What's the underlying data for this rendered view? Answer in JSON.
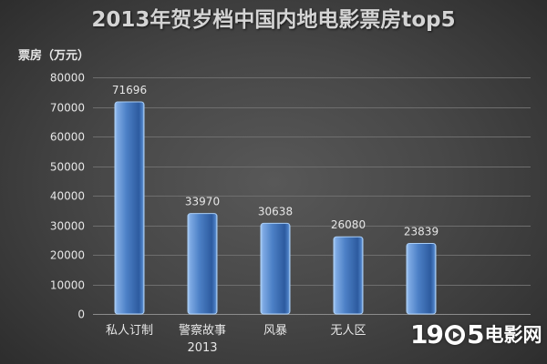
{
  "chart_data": {
    "type": "bar",
    "title": "2013年贺岁档中国内地电影票房top5",
    "ylabel": "票房（万元）",
    "xlabel": "",
    "categories": [
      "私人订制",
      "警察故事\n2013",
      "风暴",
      "无人区",
      ""
    ],
    "values": [
      71696,
      33970,
      30638,
      26080,
      23839
    ],
    "ylim": [
      0,
      80000
    ],
    "yticks": [
      0,
      10000,
      20000,
      30000,
      40000,
      50000,
      60000,
      70000,
      80000
    ],
    "data_labels": true,
    "grid": true,
    "legend": "none"
  },
  "colors": {
    "title": "#d4d4d4",
    "text": "#e6e6e6",
    "grid": "#6e6e6e",
    "axis": "#8c8c8c",
    "bar": "#4c80c6",
    "bar_highlight": "#7eaae4",
    "bar_shadow": "#2d5b9f",
    "bar_edge": "#a9cdf5"
  },
  "watermark": {
    "lead": "19",
    "tail": "5",
    "brand": "电影网"
  }
}
